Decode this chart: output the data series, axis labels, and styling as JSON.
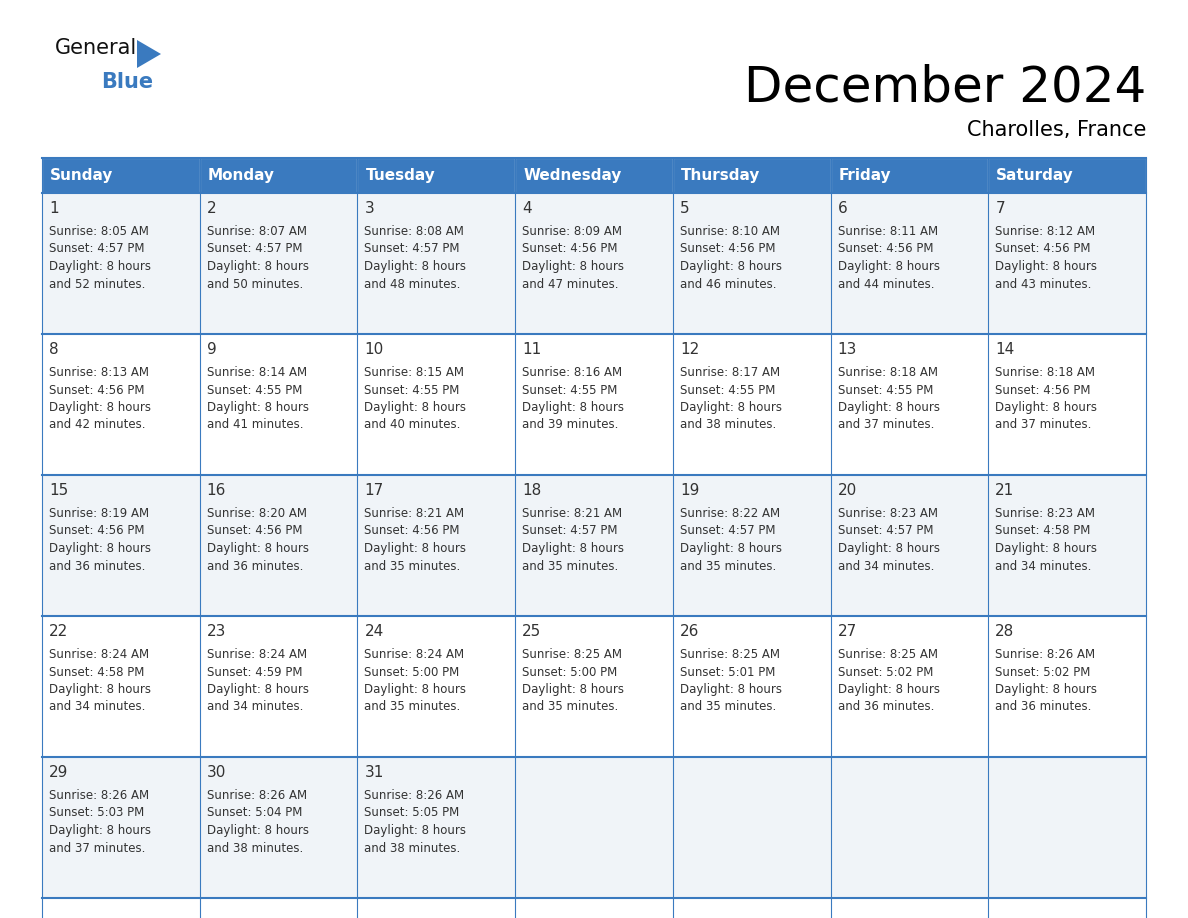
{
  "title": "December 2024",
  "subtitle": "Charolles, France",
  "header_color": "#3a7abf",
  "header_text_color": "#ffffff",
  "day_names": [
    "Sunday",
    "Monday",
    "Tuesday",
    "Wednesday",
    "Thursday",
    "Friday",
    "Saturday"
  ],
  "cell_bg_even": "#f0f4f8",
  "cell_bg_odd": "#ffffff",
  "border_color": "#3a7abf",
  "text_color": "#333333",
  "days": [
    {
      "day": 1,
      "col": 0,
      "row": 0,
      "sunrise": "8:05 AM",
      "sunset": "4:57 PM",
      "daylight": "8 hours and 52 minutes"
    },
    {
      "day": 2,
      "col": 1,
      "row": 0,
      "sunrise": "8:07 AM",
      "sunset": "4:57 PM",
      "daylight": "8 hours and 50 minutes"
    },
    {
      "day": 3,
      "col": 2,
      "row": 0,
      "sunrise": "8:08 AM",
      "sunset": "4:57 PM",
      "daylight": "8 hours and 48 minutes"
    },
    {
      "day": 4,
      "col": 3,
      "row": 0,
      "sunrise": "8:09 AM",
      "sunset": "4:56 PM",
      "daylight": "8 hours and 47 minutes"
    },
    {
      "day": 5,
      "col": 4,
      "row": 0,
      "sunrise": "8:10 AM",
      "sunset": "4:56 PM",
      "daylight": "8 hours and 46 minutes"
    },
    {
      "day": 6,
      "col": 5,
      "row": 0,
      "sunrise": "8:11 AM",
      "sunset": "4:56 PM",
      "daylight": "8 hours and 44 minutes"
    },
    {
      "day": 7,
      "col": 6,
      "row": 0,
      "sunrise": "8:12 AM",
      "sunset": "4:56 PM",
      "daylight": "8 hours and 43 minutes"
    },
    {
      "day": 8,
      "col": 0,
      "row": 1,
      "sunrise": "8:13 AM",
      "sunset": "4:56 PM",
      "daylight": "8 hours and 42 minutes"
    },
    {
      "day": 9,
      "col": 1,
      "row": 1,
      "sunrise": "8:14 AM",
      "sunset": "4:55 PM",
      "daylight": "8 hours and 41 minutes"
    },
    {
      "day": 10,
      "col": 2,
      "row": 1,
      "sunrise": "8:15 AM",
      "sunset": "4:55 PM",
      "daylight": "8 hours and 40 minutes"
    },
    {
      "day": 11,
      "col": 3,
      "row": 1,
      "sunrise": "8:16 AM",
      "sunset": "4:55 PM",
      "daylight": "8 hours and 39 minutes"
    },
    {
      "day": 12,
      "col": 4,
      "row": 1,
      "sunrise": "8:17 AM",
      "sunset": "4:55 PM",
      "daylight": "8 hours and 38 minutes"
    },
    {
      "day": 13,
      "col": 5,
      "row": 1,
      "sunrise": "8:18 AM",
      "sunset": "4:55 PM",
      "daylight": "8 hours and 37 minutes"
    },
    {
      "day": 14,
      "col": 6,
      "row": 1,
      "sunrise": "8:18 AM",
      "sunset": "4:56 PM",
      "daylight": "8 hours and 37 minutes"
    },
    {
      "day": 15,
      "col": 0,
      "row": 2,
      "sunrise": "8:19 AM",
      "sunset": "4:56 PM",
      "daylight": "8 hours and 36 minutes"
    },
    {
      "day": 16,
      "col": 1,
      "row": 2,
      "sunrise": "8:20 AM",
      "sunset": "4:56 PM",
      "daylight": "8 hours and 36 minutes"
    },
    {
      "day": 17,
      "col": 2,
      "row": 2,
      "sunrise": "8:21 AM",
      "sunset": "4:56 PM",
      "daylight": "8 hours and 35 minutes"
    },
    {
      "day": 18,
      "col": 3,
      "row": 2,
      "sunrise": "8:21 AM",
      "sunset": "4:57 PM",
      "daylight": "8 hours and 35 minutes"
    },
    {
      "day": 19,
      "col": 4,
      "row": 2,
      "sunrise": "8:22 AM",
      "sunset": "4:57 PM",
      "daylight": "8 hours and 35 minutes"
    },
    {
      "day": 20,
      "col": 5,
      "row": 2,
      "sunrise": "8:23 AM",
      "sunset": "4:57 PM",
      "daylight": "8 hours and 34 minutes"
    },
    {
      "day": 21,
      "col": 6,
      "row": 2,
      "sunrise": "8:23 AM",
      "sunset": "4:58 PM",
      "daylight": "8 hours and 34 minutes"
    },
    {
      "day": 22,
      "col": 0,
      "row": 3,
      "sunrise": "8:24 AM",
      "sunset": "4:58 PM",
      "daylight": "8 hours and 34 minutes"
    },
    {
      "day": 23,
      "col": 1,
      "row": 3,
      "sunrise": "8:24 AM",
      "sunset": "4:59 PM",
      "daylight": "8 hours and 34 minutes"
    },
    {
      "day": 24,
      "col": 2,
      "row": 3,
      "sunrise": "8:24 AM",
      "sunset": "5:00 PM",
      "daylight": "8 hours and 35 minutes"
    },
    {
      "day": 25,
      "col": 3,
      "row": 3,
      "sunrise": "8:25 AM",
      "sunset": "5:00 PM",
      "daylight": "8 hours and 35 minutes"
    },
    {
      "day": 26,
      "col": 4,
      "row": 3,
      "sunrise": "8:25 AM",
      "sunset": "5:01 PM",
      "daylight": "8 hours and 35 minutes"
    },
    {
      "day": 27,
      "col": 5,
      "row": 3,
      "sunrise": "8:25 AM",
      "sunset": "5:02 PM",
      "daylight": "8 hours and 36 minutes"
    },
    {
      "day": 28,
      "col": 6,
      "row": 3,
      "sunrise": "8:26 AM",
      "sunset": "5:02 PM",
      "daylight": "8 hours and 36 minutes"
    },
    {
      "day": 29,
      "col": 0,
      "row": 4,
      "sunrise": "8:26 AM",
      "sunset": "5:03 PM",
      "daylight": "8 hours and 37 minutes"
    },
    {
      "day": 30,
      "col": 1,
      "row": 4,
      "sunrise": "8:26 AM",
      "sunset": "5:04 PM",
      "daylight": "8 hours and 38 minutes"
    },
    {
      "day": 31,
      "col": 2,
      "row": 4,
      "sunrise": "8:26 AM",
      "sunset": "5:05 PM",
      "daylight": "8 hours and 38 minutes"
    }
  ],
  "num_rows": 5,
  "num_cols": 7,
  "logo_text_general": "General",
  "logo_text_blue": "Blue",
  "logo_triangle_color": "#3a7abf",
  "title_fontsize": 36,
  "subtitle_fontsize": 15,
  "header_fontsize": 11,
  "day_num_fontsize": 11,
  "cell_text_fontsize": 8.5
}
